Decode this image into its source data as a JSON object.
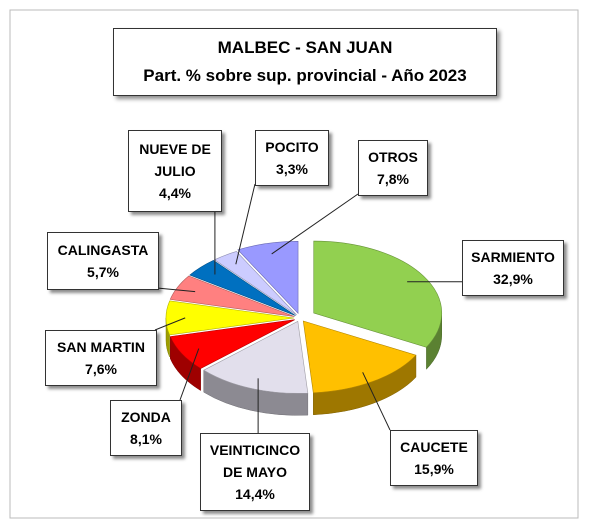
{
  "chart_data": {
    "type": "pie",
    "title": "MALBEC - SAN JUAN",
    "subtitle": "Part. % sobre sup. provincial  - Año 2023",
    "categories": [
      "SARMIENTO",
      "CAUCETE",
      "VEINTICINCO DE MAYO",
      "ZONDA",
      "SAN MARTIN",
      "CALINGASTA",
      "NUEVE DE JULIO",
      "POCITO",
      "OTROS"
    ],
    "values": [
      32.9,
      15.9,
      14.4,
      8.1,
      7.6,
      5.7,
      4.4,
      3.3,
      7.8
    ],
    "value_labels": [
      "32,9%",
      "15,9%",
      "14,4%",
      "8,1%",
      "7,6%",
      "5,7%",
      "4,4%",
      "3,3%",
      "7,8%"
    ],
    "colors": [
      "#92d050",
      "#ffc000",
      "#e2dfec",
      "#ff0000",
      "#ffff00",
      "#ff8080",
      "#0070c0",
      "#ccccff",
      "#9999ff"
    ]
  }
}
